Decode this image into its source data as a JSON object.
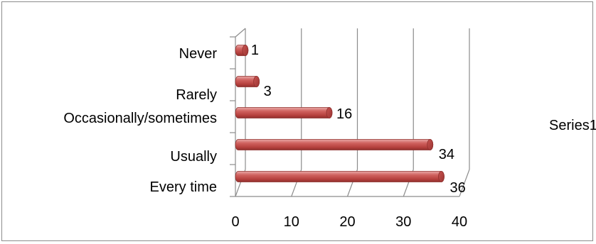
{
  "chart_data": {
    "type": "bar",
    "orientation": "horizontal",
    "style": "3d-cylinder",
    "categories": [
      "Never",
      "Rarely",
      "Occasionally/sometimes",
      "Usually",
      "Every time"
    ],
    "series": [
      {
        "name": "Series1",
        "values": [
          1,
          3,
          16,
          34,
          36
        ],
        "color": "#c0504d"
      }
    ],
    "data_labels": [
      "1",
      "3",
      "16",
      "34",
      "36"
    ],
    "xlim": [
      0,
      40
    ],
    "xticks": [
      "0",
      "10",
      "20",
      "30",
      "40"
    ],
    "grid": true,
    "legend": {
      "position": "right",
      "label": "Series1"
    },
    "title": "",
    "xlabel": "",
    "ylabel": ""
  }
}
